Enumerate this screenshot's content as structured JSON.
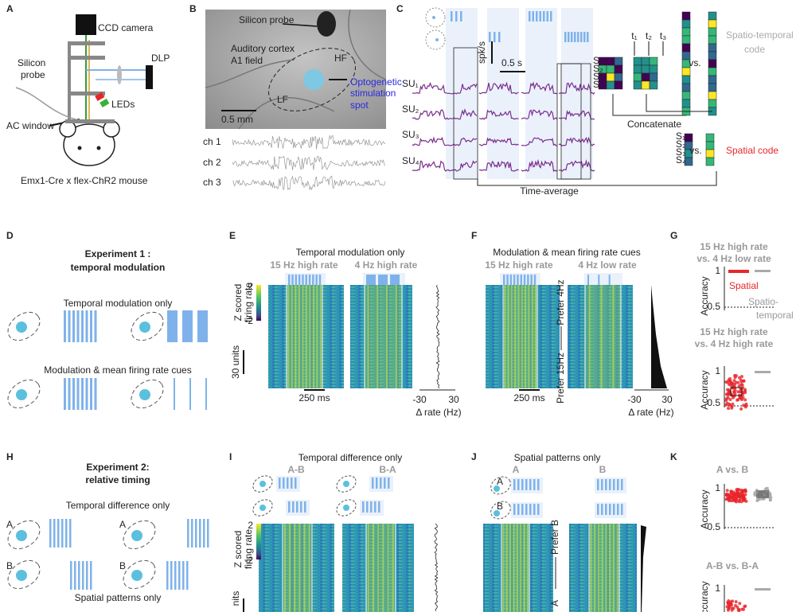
{
  "panels": {
    "A": {
      "letter": "A",
      "labels": [
        "CCD camera",
        "DLP",
        "Silicon",
        "probe",
        "LEDs",
        "AC window",
        "Emx1-Cre x flex-ChR2 mouse"
      ]
    },
    "B": {
      "letter": "B",
      "labels": [
        "Silicon probe",
        "Auditory cortex",
        "A1 field",
        "HF",
        "LF",
        "Optogenetic",
        "stimulation",
        "spot",
        "0.5 mm",
        "ch 1",
        "ch 2",
        "ch 3"
      ]
    },
    "C": {
      "letter": "C",
      "labels": [
        "spk/s",
        "0.5 s",
        "SU₁",
        "SU₂",
        "SU₃",
        "SU₄",
        "t₁",
        "t₂",
        "t₃",
        "S₁",
        "S₂",
        "S₃",
        "S₄",
        "vs.",
        "Spatio-temporal",
        "code",
        "Concatenate",
        "S₁",
        "S₂",
        "S₃",
        "S₄",
        "vs.",
        "Spatial code",
        "Time-average"
      ]
    },
    "D": {
      "letter": "D",
      "labels": [
        "Experiment 1 :",
        "temporal modulation",
        "Temporal modulation only",
        "Modulation & mean firing rate cues"
      ]
    },
    "E": {
      "letter": "E",
      "labels": [
        "Temporal modulation only",
        "15 Hz high rate",
        "4 Hz high rate",
        "Z scored",
        "firing rate",
        "2",
        "-2",
        "30 units",
        "250 ms",
        "-30",
        "30",
        "Δ rate (Hz)"
      ]
    },
    "F": {
      "letter": "F",
      "labels": [
        "Modulation & mean firing rate cues",
        "15 Hz high rate",
        "4 Hz low rate",
        "Prefer 4Hz",
        "Prefer 15Hz",
        "250 ms",
        "-30",
        "30",
        "Δ rate (Hz)"
      ]
    },
    "G": {
      "letter": "G",
      "labels": [
        "15 Hz high rate",
        "vs. 4 Hz low rate",
        "1",
        "0.5",
        "Accuracy",
        "Spatial",
        "Spatio-",
        "temporal",
        "15 Hz high rate",
        "vs. 4 Hz high rate",
        "1",
        "0.5",
        "Accuracy"
      ]
    },
    "H": {
      "letter": "H",
      "labels": [
        "Experiment 2:",
        "relative timing",
        "Temporal difference only",
        "A",
        "B",
        "A",
        "B",
        "Spatial patterns only"
      ]
    },
    "I": {
      "letter": "I",
      "labels": [
        "Temporal difference only",
        "A-B",
        "B-A",
        "Z scored",
        "firing rate",
        "2",
        "-2",
        "nits"
      ]
    },
    "J": {
      "letter": "J",
      "labels": [
        "Spatial patterns only",
        "A",
        "B",
        "A",
        "B",
        "Prefer B",
        "A"
      ]
    },
    "K": {
      "letter": "K",
      "labels": [
        "A vs. B",
        "1",
        "0.5",
        "Accuracy",
        "A-B vs. B-A",
        "1",
        "Accuracy"
      ]
    }
  }
}
